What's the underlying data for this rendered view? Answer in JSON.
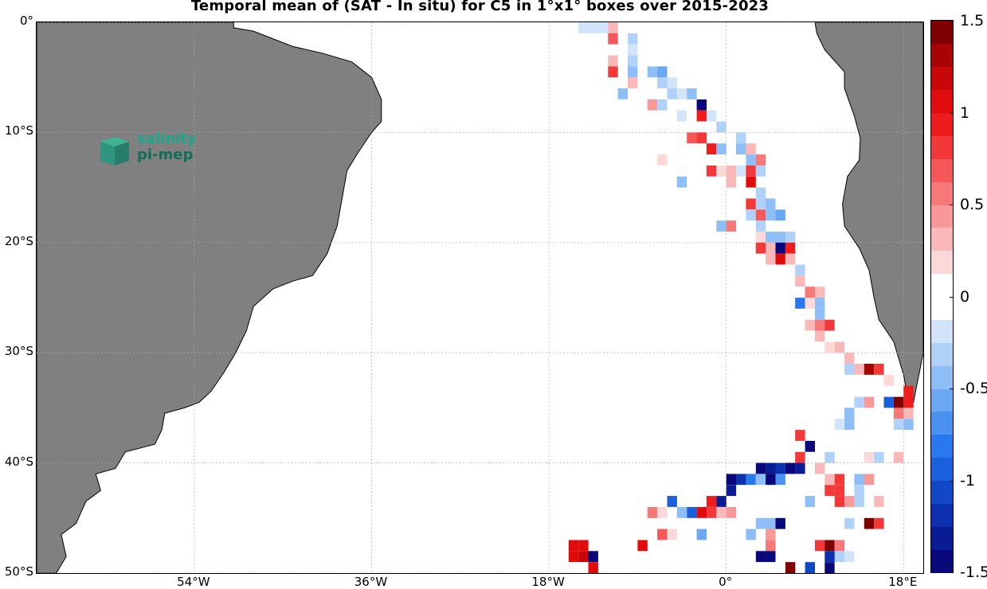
{
  "title": "Temporal mean of (SAT - In situ) for C5 in 1°x1° boxes over 2015-2023",
  "map": {
    "lon_range": [
      -70,
      20
    ],
    "lat_range": [
      -50,
      0
    ],
    "land_color": "#808080",
    "ocean_color": "#ffffff",
    "grid": "dotted",
    "lat_ticks": [
      {
        "label": "0°",
        "lat": 0
      },
      {
        "label": "10°S",
        "lat": -10
      },
      {
        "label": "20°S",
        "lat": -20
      },
      {
        "label": "30°S",
        "lat": -30
      },
      {
        "label": "40°S",
        "lat": -40
      },
      {
        "label": "50°S",
        "lat": -50
      }
    ],
    "lon_ticks": [
      {
        "label": "54°W",
        "lon": -54
      },
      {
        "label": "36°W",
        "lon": -36
      },
      {
        "label": "18°W",
        "lon": -18
      },
      {
        "label": "0°",
        "lon": 0
      },
      {
        "label": "18°E",
        "lon": 18
      }
    ]
  },
  "logo": {
    "line1": "salinity",
    "line2": "pi-mep"
  },
  "colorbar": {
    "min": -1.5,
    "max": 1.5,
    "ticks": [
      {
        "label": "1.5",
        "value": 1.5
      },
      {
        "label": "1",
        "value": 1.0
      },
      {
        "label": "0.5",
        "value": 0.5
      },
      {
        "label": "0",
        "value": 0
      },
      {
        "label": "-0.5",
        "value": -0.5
      },
      {
        "label": "-1",
        "value": -1.0
      },
      {
        "label": "-1.5",
        "value": -1.5
      }
    ],
    "colors_low_to_high": [
      "#08087a",
      "#0a1c94",
      "#0c30ae",
      "#1048c6",
      "#1a60dc",
      "#2a78ee",
      "#4a92f2",
      "#6aa8f4",
      "#8ebef6",
      "#b0d2f8",
      "#d2e4fa",
      "#ffffff",
      "#ffffff",
      "#fcd8d8",
      "#fab8b8",
      "#f89898",
      "#f67878",
      "#f45858",
      "#f23838",
      "#ee1c1c",
      "#e00c0c",
      "#c80808",
      "#a80404",
      "#7e0000"
    ]
  },
  "chart_data": {
    "type": "heatmap",
    "title": "Temporal mean of (SAT - In situ) for C5 in 1°x1° boxes over 2015-2023",
    "cells": [
      [
        -24,
        -1,
        -0.9
      ],
      [
        -23,
        -1,
        -0.9
      ],
      [
        -24,
        -2,
        -0.2
      ],
      [
        -23,
        -2,
        -0.2
      ],
      [
        -25,
        -4,
        0.9
      ],
      [
        -24,
        -4,
        -0.4
      ],
      [
        -25,
        -5,
        0.4
      ],
      [
        -26,
        -6,
        -0.4
      ],
      [
        -25,
        -6,
        0.3
      ],
      [
        -24,
        -6,
        -0.2
      ],
      [
        -25,
        -7,
        0.6
      ],
      [
        -23,
        -7,
        0.6
      ],
      [
        -26,
        -8,
        -0.3
      ],
      [
        -27,
        -9,
        -0.2
      ],
      [
        -27,
        -10,
        -0.4
      ],
      [
        -26,
        -10,
        -0.5
      ],
      [
        -25,
        -10,
        0.7
      ],
      [
        -27,
        -11,
        -0.4
      ],
      [
        -26,
        -11,
        -0.9
      ],
      [
        -25,
        -11,
        -0.4
      ],
      [
        -24,
        -11,
        0.9
      ],
      [
        -28,
        -12,
        -0.2
      ],
      [
        -27,
        -12,
        0.3
      ],
      [
        -26,
        -12,
        -0.4
      ],
      [
        -25,
        -12,
        -0.7
      ],
      [
        -29,
        -13,
        1.2
      ],
      [
        -28,
        -13,
        0.4
      ],
      [
        -27,
        -13,
        -0.3
      ],
      [
        -29,
        -14,
        -0.3
      ],
      [
        -30,
        -15,
        -0.3
      ],
      [
        -28,
        -15,
        0.8
      ],
      [
        -30,
        -16,
        -0.2
      ],
      [
        -29,
        -16,
        0.2
      ],
      [
        -31,
        -17,
        0.3
      ],
      [
        -32,
        -18,
        -0.5
      ],
      [
        -30,
        -18,
        0.3
      ],
      [
        -33,
        -19,
        -0.3
      ],
      [
        -32,
        -19,
        -0.3
      ],
      [
        -31,
        -19,
        -0.3
      ],
      [
        -33,
        -20,
        -0.2
      ],
      [
        -32,
        -20,
        -0.2
      ],
      [
        -31,
        -20,
        -0.2
      ],
      [
        -32,
        -21,
        0.5
      ],
      [
        -33,
        -22,
        0.2
      ],
      [
        -34,
        -23,
        -0.3
      ],
      [
        -33,
        -23,
        0.4
      ],
      [
        -34,
        -24,
        -0.4
      ],
      [
        -33,
        -24,
        -0.3
      ],
      [
        -32,
        -24,
        0.4
      ],
      [
        -35,
        -25,
        -0.2
      ],
      [
        -33,
        -25,
        -0.5
      ],
      [
        -35,
        -26,
        -0.2
      ],
      [
        -34,
        -26,
        -0.3
      ],
      [
        -33,
        -27,
        -0.2
      ],
      [
        -32,
        -27,
        -0.9
      ],
      [
        -37,
        -28,
        -0.4
      ],
      [
        -36,
        -28,
        -0.4
      ],
      [
        -34,
        -28,
        0.2
      ],
      [
        -36,
        -29,
        -0.3
      ],
      [
        -34,
        -29,
        -0.4
      ],
      [
        -38,
        -30,
        1.4
      ],
      [
        -36,
        -30,
        0.3
      ],
      [
        -35,
        -30,
        0.2
      ],
      [
        -37,
        -31,
        -0.7
      ],
      [
        -36,
        -31,
        -0.8
      ],
      [
        -35,
        -31,
        1.4
      ],
      [
        -34,
        -31,
        0.3
      ],
      [
        -40,
        -32,
        -0.3
      ],
      [
        -36,
        -32,
        0.2
      ],
      [
        -35,
        -32,
        -0.4
      ],
      [
        -38,
        -33,
        -0.5
      ],
      [
        -37,
        -33,
        0.3
      ],
      [
        -39,
        -34,
        -0.3
      ],
      [
        -38,
        -34,
        -0.5
      ],
      [
        -41,
        -34,
        0.4
      ],
      [
        -37,
        -34,
        -0.5
      ],
      [
        -40,
        -35,
        -0.9
      ],
      [
        -39,
        -35,
        0.2
      ],
      [
        -38,
        -35,
        0.9
      ],
      [
        -39,
        -36,
        0.2
      ],
      [
        -40,
        -36,
        0.2
      ],
      [
        -40,
        -37,
        0.2
      ],
      [
        -47,
        -37,
        0.3
      ],
      [
        -40,
        -38,
        0.2
      ],
      [
        -39,
        -38,
        -0.2
      ],
      [
        -40,
        -39,
        0.2
      ],
      [
        -53,
        -40,
        -0.7
      ],
      [
        -42,
        -40,
        0.4
      ],
      [
        -41,
        -40,
        0.8
      ],
      [
        -40,
        -40,
        -0.6
      ],
      [
        -39,
        -40,
        0.8
      ],
      [
        -47,
        -41,
        1.1
      ],
      [
        -46,
        -41,
        -0.4
      ],
      [
        -43,
        -41,
        -0.3
      ],
      [
        -42,
        -41,
        0.8
      ],
      [
        -41,
        -41,
        -0.5
      ],
      [
        -40,
        -41,
        0.5
      ],
      [
        -42,
        -42,
        0.4
      ],
      [
        -53,
        -42,
        -0.4
      ],
      [
        -54,
        -42,
        -0.4
      ],
      [
        -55,
        -43,
        -0.4
      ],
      [
        -54,
        -43,
        -0.2
      ],
      [
        -45,
        -43,
        0.2
      ],
      [
        -46,
        -44,
        0.3
      ],
      [
        -45,
        -44,
        0.2
      ],
      [
        -56,
        -45,
        -0.3
      ],
      [
        -57,
        -45,
        -0.2
      ],
      [
        -58,
        -45,
        0.2
      ],
      [
        -57,
        -46,
        -0.4
      ],
      [
        -58,
        -46,
        -0.3
      ],
      [
        -53,
        -46,
        0.2
      ],
      [
        -58,
        -47,
        -0.4
      ],
      [
        -59,
        -47,
        -0.4
      ],
      [
        -54,
        -47,
        0.2
      ],
      [
        -53,
        -48,
        -0.8
      ],
      [
        -52,
        -48,
        -0.9
      ],
      [
        -16,
        -36,
        0.8
      ],
      [
        -15,
        -36,
        1.3
      ],
      [
        -17,
        -39,
        -0.2
      ],
      [
        -21,
        -4,
        0.2
      ],
      [
        -21,
        -5,
        0.2
      ],
      [
        -21,
        -6,
        0.2
      ],
      [
        -21,
        -7,
        0.2
      ],
      [
        -21,
        -8,
        0.2
      ],
      [
        -19,
        -9,
        -0.3
      ],
      [
        -19,
        -11,
        -0.2
      ],
      [
        -19,
        -16,
        0.4
      ],
      [
        -19,
        -18,
        0.3
      ],
      [
        -18,
        -19,
        0.5
      ],
      [
        -18,
        -22,
        -0.3
      ],
      [
        -18,
        -26,
        -0.5
      ],
      [
        -18,
        -27,
        -0.4
      ],
      [
        -18,
        -28,
        -0.4
      ],
      [
        -18,
        -29,
        0.9
      ],
      [
        -17,
        -30,
        -0.2
      ],
      [
        -15,
        0,
        -0.2
      ],
      [
        -14,
        0,
        -0.2
      ],
      [
        -13,
        0,
        -0.2
      ],
      [
        -12,
        0,
        0.3
      ],
      [
        -12,
        1,
        0.7
      ],
      [
        -10,
        1,
        -0.3
      ],
      [
        -10,
        2,
        -0.2
      ],
      [
        -10,
        3,
        -0.3
      ],
      [
        -12,
        3,
        0.3
      ],
      [
        -10,
        4,
        -0.4
      ],
      [
        -12,
        4,
        0.8
      ],
      [
        -8,
        4,
        -0.4
      ],
      [
        -7,
        4,
        -0.6
      ],
      [
        -7,
        5,
        -0.3
      ],
      [
        -6,
        5,
        -0.2
      ],
      [
        -10,
        5,
        0.3
      ],
      [
        -11,
        6,
        -0.4
      ],
      [
        -6,
        6,
        -0.3
      ],
      [
        -5,
        6,
        -0.2
      ],
      [
        -4,
        6,
        -0.4
      ],
      [
        -8,
        7,
        0.4
      ],
      [
        -7,
        7,
        -0.3
      ],
      [
        -3,
        7,
        -1.4
      ],
      [
        -5,
        8,
        -0.2
      ],
      [
        -3,
        8,
        0.9
      ],
      [
        -2,
        8,
        -0.2
      ],
      [
        -1,
        9,
        -0.3
      ],
      [
        -4,
        10,
        0.7
      ],
      [
        -3,
        10,
        0.8
      ],
      [
        -2,
        11,
        0.9
      ],
      [
        -1,
        11,
        -0.5
      ],
      [
        1,
        10,
        -0.3
      ],
      [
        1,
        11,
        -0.4
      ],
      [
        2,
        11,
        0.3
      ],
      [
        -7,
        12,
        0.2
      ],
      [
        -2,
        13,
        0.8
      ],
      [
        -1,
        13,
        0.2
      ],
      [
        0,
        13,
        0.3
      ],
      [
        2,
        12,
        -0.4
      ],
      [
        3,
        12,
        0.5
      ],
      [
        1,
        13,
        -0.2
      ],
      [
        2,
        13,
        0.8
      ],
      [
        3,
        13,
        -0.3
      ],
      [
        -5,
        14,
        -0.5
      ],
      [
        0,
        14,
        0.3
      ],
      [
        2,
        14,
        1.0
      ],
      [
        3,
        15,
        -0.3
      ],
      [
        2,
        16,
        0.8
      ],
      [
        3,
        16,
        -0.3
      ],
      [
        4,
        16,
        -0.5
      ],
      [
        2,
        17,
        -0.3
      ],
      [
        3,
        17,
        0.7
      ],
      [
        4,
        17,
        -0.5
      ],
      [
        5,
        17,
        -0.6
      ],
      [
        -1,
        18,
        -0.5
      ],
      [
        0,
        18,
        0.5
      ],
      [
        3,
        18,
        -0.3
      ],
      [
        3,
        19,
        0.2
      ],
      [
        4,
        19,
        -0.4
      ],
      [
        5,
        19,
        -0.4
      ],
      [
        6,
        19,
        -0.3
      ],
      [
        3,
        20,
        0.8
      ],
      [
        4,
        20,
        0.3
      ],
      [
        5,
        20,
        -1.4
      ],
      [
        6,
        20,
        0.9
      ],
      [
        4,
        21,
        0.3
      ],
      [
        5,
        21,
        1.1
      ],
      [
        6,
        21,
        0.3
      ],
      [
        7,
        22,
        -0.3
      ],
      [
        7,
        23,
        0.3
      ],
      [
        8,
        24,
        0.6
      ],
      [
        9,
        24,
        0.3
      ],
      [
        7,
        25,
        -0.8
      ],
      [
        8,
        25,
        0.2
      ],
      [
        9,
        25,
        -0.4
      ],
      [
        9,
        26,
        -0.4
      ],
      [
        8,
        27,
        0.3
      ],
      [
        9,
        27,
        0.6
      ],
      [
        10,
        27,
        0.8
      ],
      [
        9,
        28,
        0.3
      ],
      [
        10,
        29,
        0.2
      ],
      [
        11,
        29,
        0.3
      ],
      [
        12,
        30,
        0.3
      ],
      [
        12,
        31,
        -0.3
      ],
      [
        13,
        31,
        0.3
      ],
      [
        14,
        31,
        1.3
      ],
      [
        15,
        31,
        0.8
      ],
      [
        16,
        32,
        0.2
      ],
      [
        18,
        33,
        0.9
      ],
      [
        13,
        34,
        -0.3
      ],
      [
        14,
        34,
        0.4
      ],
      [
        16,
        34,
        -0.9
      ],
      [
        17,
        34,
        1.4
      ],
      [
        18,
        34,
        0.9
      ],
      [
        12,
        35,
        -0.4
      ],
      [
        17,
        35,
        0.6
      ],
      [
        18,
        35,
        0.3
      ],
      [
        11,
        36,
        -0.2
      ],
      [
        12,
        36,
        -0.5
      ],
      [
        17,
        36,
        -0.3
      ],
      [
        18,
        36,
        -0.5
      ],
      [
        7,
        37,
        0.8
      ],
      [
        8,
        38,
        -1.4
      ],
      [
        7,
        39,
        0.8
      ],
      [
        3,
        40,
        -1.4
      ],
      [
        4,
        40,
        -1.3
      ],
      [
        5,
        40,
        -1.2
      ],
      [
        6,
        40,
        -1.4
      ],
      [
        7,
        40,
        -1.3
      ],
      [
        9,
        40,
        0.3
      ],
      [
        14,
        39,
        0.2
      ],
      [
        15,
        39,
        -0.3
      ],
      [
        17,
        39,
        0.3
      ],
      [
        10,
        39,
        -0.3
      ],
      [
        0,
        41,
        -1.4
      ],
      [
        1,
        41,
        -1.2
      ],
      [
        2,
        41,
        -0.8
      ],
      [
        3,
        41,
        -0.4
      ],
      [
        4,
        41,
        -1.4
      ],
      [
        5,
        41,
        -0.7
      ],
      [
        10,
        41,
        0.3
      ],
      [
        11,
        41,
        0.8
      ],
      [
        13,
        41,
        -0.4
      ],
      [
        14,
        41,
        0.4
      ],
      [
        0,
        42,
        -1.3
      ],
      [
        10,
        42,
        0.8
      ],
      [
        11,
        42,
        0.8
      ],
      [
        13,
        42,
        -0.3
      ],
      [
        -6,
        43,
        -0.9
      ],
      [
        -2,
        43,
        0.9
      ],
      [
        -1,
        43,
        -1.3
      ],
      [
        8,
        43,
        -0.4
      ],
      [
        11,
        43,
        0.8
      ],
      [
        12,
        43,
        0.4
      ],
      [
        13,
        43,
        -0.3
      ],
      [
        15,
        43,
        0.3
      ],
      [
        -8,
        44,
        0.6
      ],
      [
        -7,
        44,
        0.2
      ],
      [
        -3,
        44,
        1.0
      ],
      [
        -2,
        44,
        0.8
      ],
      [
        -1,
        44,
        0.3
      ],
      [
        -4,
        44,
        -0.9
      ],
      [
        -5,
        44,
        -0.4
      ],
      [
        0,
        44,
        0.4
      ],
      [
        3,
        45,
        -0.5
      ],
      [
        4,
        45,
        -0.5
      ],
      [
        5,
        45,
        -1.4
      ],
      [
        12,
        45,
        -0.3
      ],
      [
        -6,
        46,
        0.2
      ],
      [
        -7,
        46,
        0.7
      ],
      [
        -3,
        46,
        -0.6
      ],
      [
        2,
        46,
        -0.4
      ],
      [
        4,
        46,
        0.4
      ],
      [
        4,
        47,
        0.5
      ],
      [
        -9,
        47,
        1.0
      ],
      [
        9,
        47,
        0.8
      ],
      [
        10,
        47,
        1.5
      ],
      [
        11,
        47,
        0.6
      ],
      [
        -16,
        47,
        1.0
      ],
      [
        -15,
        47,
        1.0
      ],
      [
        -16,
        48,
        1.0
      ],
      [
        -15,
        48,
        1.2
      ],
      [
        -14,
        48,
        -1.4
      ],
      [
        3,
        48,
        -1.4
      ],
      [
        4,
        48,
        -1.4
      ],
      [
        11,
        48,
        -0.3
      ],
      [
        12,
        48,
        -0.2
      ],
      [
        10,
        48,
        -1.2
      ],
      [
        -14,
        49,
        1.0
      ],
      [
        6,
        49,
        1.4
      ],
      [
        8,
        49,
        -1.1
      ],
      [
        10,
        49,
        -1.4
      ],
      [
        14,
        45,
        1.4
      ],
      [
        15,
        45,
        0.8
      ]
    ]
  }
}
